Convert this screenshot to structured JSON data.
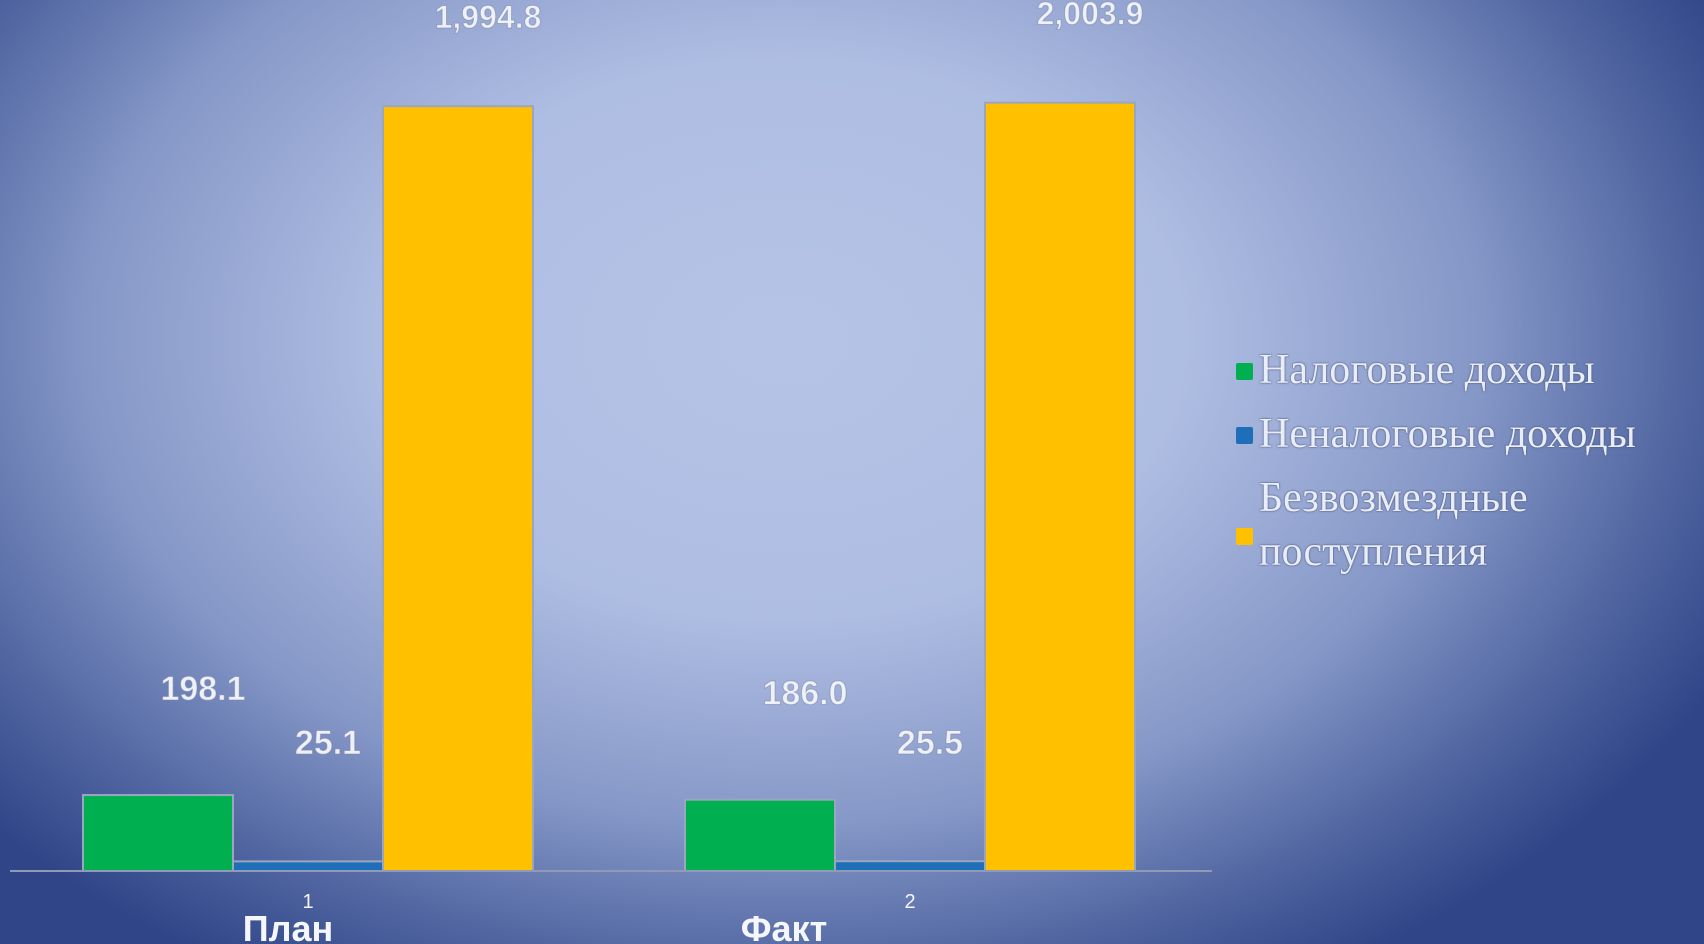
{
  "chart_data": {
    "type": "bar",
    "categories": [
      "План",
      "Факт"
    ],
    "tick_numbers": [
      "1",
      "2"
    ],
    "series": [
      {
        "name": "Налоговые доходы",
        "values": [
          198.1,
          186.0
        ],
        "labels": [
          "198.1",
          "186.0"
        ],
        "color": "#00b050"
      },
      {
        "name": "Неналоговые доходы",
        "values": [
          25.1,
          25.5
        ],
        "labels": [
          "25.1",
          "25.5"
        ],
        "color": "#1f6fb8"
      },
      {
        "name": "Безвозмездные поступления",
        "values": [
          1994.8,
          2003.9
        ],
        "labels": [
          "1,994.8",
          "2,003.9"
        ],
        "color": "#ffc000"
      }
    ],
    "ylim": [
      0,
      2050
    ],
    "title": "",
    "xlabel": "",
    "ylabel": "",
    "grid": false,
    "legend_position": "right",
    "colors": {
      "axis": "#8e9ab8",
      "bar_edge": "#9aa6c0",
      "data_label": "#eef1f8",
      "tick_label": "#f5f7fc"
    }
  }
}
